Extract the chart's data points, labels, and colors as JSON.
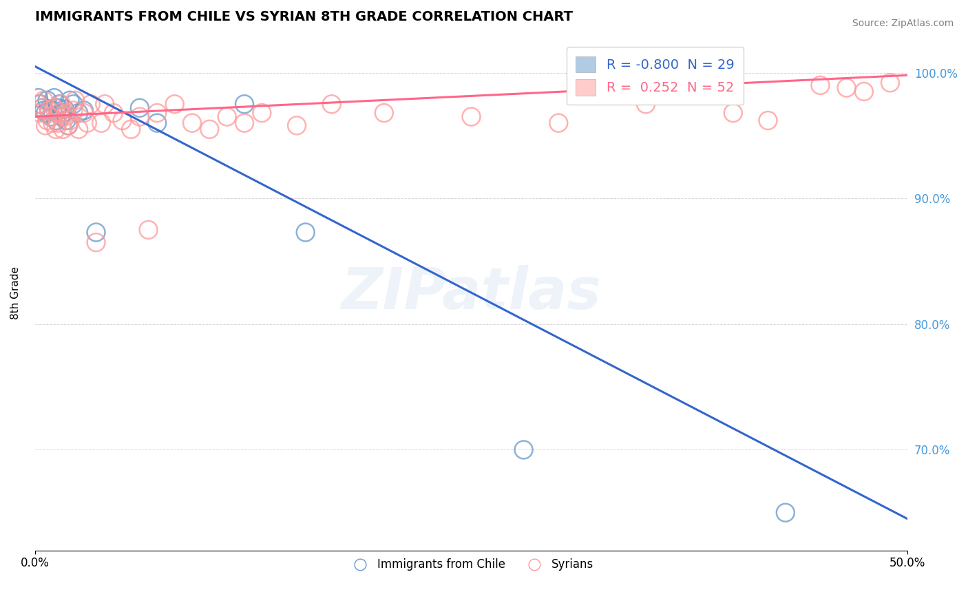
{
  "title": "IMMIGRANTS FROM CHILE VS SYRIAN 8TH GRADE CORRELATION CHART",
  "source": "Source: ZipAtlas.com",
  "ylabel": "8th Grade",
  "x_min": 0.0,
  "x_max": 0.5,
  "y_min": 0.62,
  "y_max": 1.03,
  "x_ticks": [
    0.0,
    0.5
  ],
  "x_tick_labels": [
    "0.0%",
    "50.0%"
  ],
  "y_ticks": [
    0.7,
    0.8,
    0.9,
    1.0
  ],
  "y_tick_labels": [
    "70.0%",
    "80.0%",
    "90.0%",
    "100.0%"
  ],
  "chile_color": "#6699CC",
  "syria_color": "#FF9999",
  "chile_line_color": "#3366CC",
  "syria_line_color": "#FF6688",
  "chile_R": -0.8,
  "chile_N": 29,
  "syria_R": 0.252,
  "syria_N": 52,
  "watermark": "ZIPatlas",
  "legend_label_chile": "Immigrants from Chile",
  "legend_label_syria": "Syrians",
  "chile_x": [
    0.002,
    0.003,
    0.004,
    0.005,
    0.006,
    0.007,
    0.008,
    0.009,
    0.01,
    0.011,
    0.012,
    0.013,
    0.014,
    0.015,
    0.016,
    0.017,
    0.018,
    0.019,
    0.02,
    0.022,
    0.025,
    0.028,
    0.035,
    0.06,
    0.07,
    0.12,
    0.155,
    0.28,
    0.43
  ],
  "chile_y": [
    0.98,
    0.975,
    0.972,
    0.97,
    0.968,
    0.978,
    0.971,
    0.965,
    0.97,
    0.98,
    0.962,
    0.972,
    0.975,
    0.965,
    0.968,
    0.971,
    0.962,
    0.958,
    0.978,
    0.975,
    0.968,
    0.97,
    0.873,
    0.972,
    0.96,
    0.975,
    0.873,
    0.7,
    0.65
  ],
  "syria_x": [
    0.002,
    0.003,
    0.004,
    0.005,
    0.006,
    0.007,
    0.008,
    0.009,
    0.01,
    0.011,
    0.012,
    0.013,
    0.014,
    0.015,
    0.016,
    0.017,
    0.018,
    0.019,
    0.02,
    0.022,
    0.023,
    0.025,
    0.028,
    0.03,
    0.032,
    0.035,
    0.038,
    0.04,
    0.045,
    0.05,
    0.055,
    0.06,
    0.065,
    0.07,
    0.08,
    0.09,
    0.1,
    0.11,
    0.12,
    0.13,
    0.15,
    0.17,
    0.2,
    0.25,
    0.3,
    0.35,
    0.4,
    0.42,
    0.45,
    0.465,
    0.475,
    0.49
  ],
  "syria_y": [
    0.975,
    0.968,
    0.972,
    0.978,
    0.958,
    0.962,
    0.97,
    0.965,
    0.96,
    0.972,
    0.955,
    0.96,
    0.968,
    0.975,
    0.955,
    0.965,
    0.968,
    0.958,
    0.962,
    0.97,
    0.978,
    0.955,
    0.968,
    0.96,
    0.975,
    0.865,
    0.96,
    0.975,
    0.968,
    0.962,
    0.955,
    0.965,
    0.875,
    0.968,
    0.975,
    0.96,
    0.955,
    0.965,
    0.96,
    0.968,
    0.958,
    0.975,
    0.968,
    0.965,
    0.96,
    0.975,
    0.968,
    0.962,
    0.99,
    0.988,
    0.985,
    0.992
  ],
  "chile_trend_x": [
    0.0,
    0.5
  ],
  "chile_trend_y": [
    1.005,
    0.645
  ],
  "syria_trend_x": [
    0.0,
    0.5
  ],
  "syria_trend_y": [
    0.965,
    0.998
  ]
}
